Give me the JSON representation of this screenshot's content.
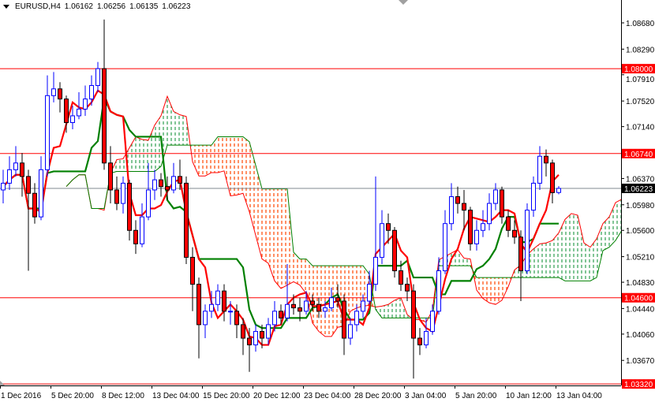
{
  "header": {
    "symbol": "EURUSD,H4",
    "open": "1.06162",
    "high": "1.06256",
    "low": "1.06135",
    "close": "1.06223"
  },
  "chart_data": {
    "type": "candlestick",
    "indicator": "ichimoku",
    "ylim": [
      1.032,
      1.088
    ],
    "yticks": [
      "1.08680",
      "1.08290",
      "1.07910",
      "1.07520",
      "1.07140",
      "1.06370",
      "1.05980",
      "1.05600",
      "1.05210",
      "1.04830",
      "1.04440",
      "1.04060",
      "1.03670"
    ],
    "xticks": [
      "1 Dec 2016",
      "5 Dec 20:00",
      "8 Dec 12:00",
      "13 Dec 04:00",
      "15 Dec 20:00",
      "20 Dec 12:00",
      "23 Dec 04:00",
      "28 Dec 20:00",
      "3 Jan 04:00",
      "5 Jan 20:00",
      "10 Jan 12:00",
      "13 Jan 04:00"
    ],
    "levels": [
      {
        "label": "1.08000",
        "value": 1.08
      },
      {
        "label": "1.06740",
        "value": 1.0674
      },
      {
        "label": "1.04600",
        "value": 1.046
      },
      {
        "label": "1.03320",
        "value": 1.0332
      }
    ],
    "current_price": {
      "label": "1.06223",
      "value": 1.06223
    },
    "colors": {
      "bull": "#0000ff",
      "bear": "#ff0000",
      "level": "#ff0000",
      "tenkan": "#ff0000",
      "kijun": "#008000",
      "cloud_bear": "#ff4500",
      "cloud_bull": "#2e9e4f",
      "current": "#808890"
    },
    "ohlc": [
      [
        1.062,
        1.065,
        1.06,
        1.063
      ],
      [
        1.063,
        1.067,
        1.062,
        1.065
      ],
      [
        1.065,
        1.0685,
        1.064,
        1.066
      ],
      [
        1.066,
        1.0675,
        1.061,
        1.064
      ],
      [
        1.064,
        1.065,
        1.05,
        1.0615
      ],
      [
        1.0615,
        1.063,
        1.057,
        1.058
      ],
      [
        1.058,
        1.067,
        1.0575,
        1.065
      ],
      [
        1.065,
        1.079,
        1.064,
        1.076
      ],
      [
        1.076,
        1.0795,
        1.075,
        1.077
      ],
      [
        1.077,
        1.078,
        1.0735,
        1.0755
      ],
      [
        1.0755,
        1.076,
        1.0705,
        1.072
      ],
      [
        1.072,
        1.0745,
        1.071,
        1.073
      ],
      [
        1.073,
        1.0765,
        1.0725,
        1.074
      ],
      [
        1.074,
        1.0775,
        1.073,
        1.0755
      ],
      [
        1.0755,
        1.079,
        1.0745,
        1.0775
      ],
      [
        1.0775,
        1.081,
        1.0765,
        1.08
      ],
      [
        1.08,
        1.0873,
        1.065,
        1.066
      ],
      [
        1.066,
        1.0685,
        1.06,
        1.062
      ],
      [
        1.062,
        1.064,
        1.059,
        1.06
      ],
      [
        1.06,
        1.064,
        1.0585,
        1.063
      ],
      [
        1.063,
        1.0635,
        1.0545,
        1.056
      ],
      [
        1.056,
        1.0575,
        1.0525,
        1.054
      ],
      [
        1.054,
        1.06,
        1.0535,
        1.058
      ],
      [
        1.058,
        1.066,
        1.0575,
        1.062
      ],
      [
        1.062,
        1.065,
        1.0605,
        1.0635
      ],
      [
        1.0635,
        1.0645,
        1.061,
        1.0625
      ],
      [
        1.0625,
        1.064,
        1.0605,
        1.062
      ],
      [
        1.062,
        1.066,
        1.0615,
        1.064
      ],
      [
        1.064,
        1.0665,
        1.062,
        1.063
      ],
      [
        1.063,
        1.064,
        1.051,
        1.052
      ],
      [
        1.052,
        1.0535,
        1.044,
        1.048
      ],
      [
        1.048,
        1.049,
        1.037,
        1.042
      ],
      [
        1.042,
        1.045,
        1.04,
        1.044
      ],
      [
        1.044,
        1.047,
        1.043,
        1.045
      ],
      [
        1.045,
        1.048,
        1.044,
        1.047
      ],
      [
        1.047,
        1.048,
        1.0425,
        1.044
      ],
      [
        1.044,
        1.0455,
        1.042,
        1.044
      ],
      [
        1.044,
        1.045,
        1.04,
        1.042
      ],
      [
        1.042,
        1.043,
        1.0375,
        1.04
      ],
      [
        1.04,
        1.0415,
        1.035,
        1.039
      ],
      [
        1.039,
        1.042,
        1.038,
        1.041
      ],
      [
        1.041,
        1.042,
        1.0385,
        1.04
      ],
      [
        1.04,
        1.043,
        1.039,
        1.042
      ],
      [
        1.042,
        1.0455,
        1.041,
        1.044
      ],
      [
        1.044,
        1.045,
        1.042,
        1.043
      ],
      [
        1.043,
        1.051,
        1.0425,
        1.045
      ],
      [
        1.045,
        1.0465,
        1.0435,
        1.0445
      ],
      [
        1.0445,
        1.046,
        1.0425,
        1.044
      ],
      [
        1.044,
        1.047,
        1.0435,
        1.0455
      ],
      [
        1.0455,
        1.0465,
        1.044,
        1.045
      ],
      [
        1.045,
        1.046,
        1.043,
        1.044
      ],
      [
        1.044,
        1.0455,
        1.043,
        1.0445
      ],
      [
        1.0445,
        1.0475,
        1.044,
        1.046
      ],
      [
        1.046,
        1.048,
        1.0445,
        1.0455
      ],
      [
        1.0455,
        1.0465,
        1.0375,
        1.04
      ],
      [
        1.04,
        1.043,
        1.039,
        1.042
      ],
      [
        1.042,
        1.045,
        1.041,
        1.044
      ],
      [
        1.044,
        1.0465,
        1.043,
        1.0455
      ],
      [
        1.0455,
        1.05,
        1.045,
        1.048
      ],
      [
        1.048,
        1.064,
        1.047,
        1.052
      ],
      [
        1.052,
        1.059,
        1.051,
        1.057
      ],
      [
        1.057,
        1.0585,
        1.054,
        1.056
      ],
      [
        1.056,
        1.0565,
        1.049,
        1.05
      ],
      [
        1.05,
        1.0515,
        1.047,
        1.048
      ],
      [
        1.048,
        1.049,
        1.0455,
        1.047
      ],
      [
        1.047,
        1.048,
        1.034,
        1.04
      ],
      [
        1.04,
        1.0415,
        1.0375,
        1.039
      ],
      [
        1.039,
        1.043,
        1.0385,
        1.041
      ],
      [
        1.041,
        1.045,
        1.0405,
        1.044
      ],
      [
        1.044,
        1.052,
        1.0435,
        1.05
      ],
      [
        1.05,
        1.059,
        1.0495,
        1.057
      ],
      [
        1.057,
        1.063,
        1.056,
        1.061
      ],
      [
        1.061,
        1.0625,
        1.0585,
        1.06
      ],
      [
        1.06,
        1.062,
        1.056,
        1.059
      ],
      [
        1.059,
        1.0595,
        1.053,
        1.054
      ],
      [
        1.054,
        1.0575,
        1.053,
        1.056
      ],
      [
        1.056,
        1.059,
        1.055,
        1.057
      ],
      [
        1.057,
        1.0615,
        1.056,
        1.06
      ],
      [
        1.06,
        1.063,
        1.059,
        1.062
      ],
      [
        1.062,
        1.0625,
        1.057,
        1.058
      ],
      [
        1.058,
        1.059,
        1.055,
        1.056
      ],
      [
        1.056,
        1.0575,
        1.054,
        1.055
      ],
      [
        1.055,
        1.056,
        1.0455,
        1.05
      ],
      [
        1.05,
        1.06,
        1.0495,
        1.059
      ],
      [
        1.059,
        1.064,
        1.058,
        1.063
      ],
      [
        1.063,
        1.0685,
        1.062,
        1.067
      ],
      [
        1.067,
        1.068,
        1.064,
        1.066
      ],
      [
        1.066,
        1.0665,
        1.06,
        1.0616
      ],
      [
        1.06162,
        1.06256,
        1.06135,
        1.06223
      ]
    ]
  }
}
